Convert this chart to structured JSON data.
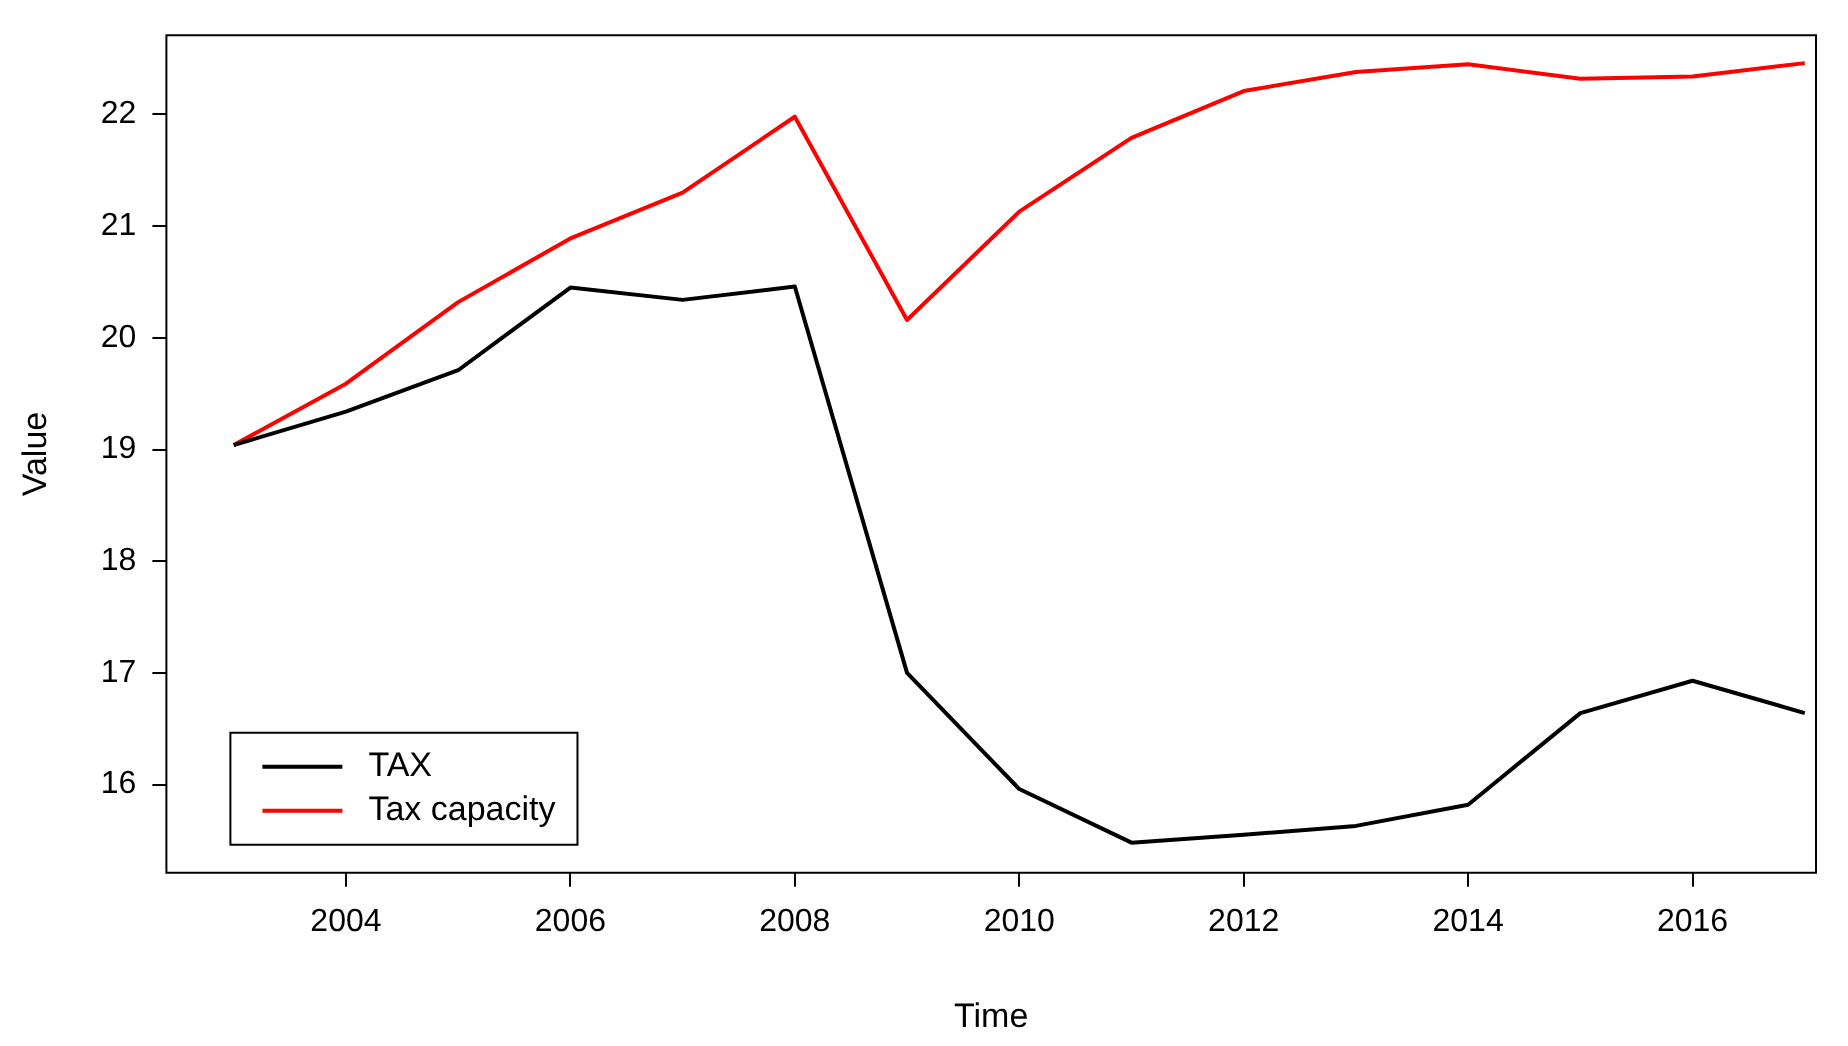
{
  "chart_data": {
    "type": "line",
    "xlabel": "Time",
    "ylabel": "Value",
    "x": [
      2003,
      2004,
      2005,
      2006,
      2007,
      2008,
      2009,
      2010,
      2011,
      2012,
      2013,
      2014,
      2015,
      2016,
      2017
    ],
    "series": [
      {
        "name": "TAX",
        "color": "#000000",
        "values": [
          19.04,
          19.34,
          19.71,
          20.45,
          20.34,
          20.46,
          17.0,
          15.96,
          15.48,
          15.55,
          15.63,
          15.82,
          16.64,
          16.93,
          16.64
        ]
      },
      {
        "name": "Tax capacity",
        "color": "#ff0000",
        "values": [
          19.04,
          19.59,
          20.32,
          20.89,
          21.3,
          21.98,
          20.16,
          21.13,
          21.79,
          22.21,
          22.38,
          22.45,
          22.32,
          22.34,
          22.46
        ]
      }
    ],
    "xlim": [
      2002.4,
      2017.1
    ],
    "ylim": [
      15.21,
      22.71
    ],
    "xticks": [
      2004,
      2006,
      2008,
      2010,
      2012,
      2014,
      2016
    ],
    "yticks": [
      16,
      17,
      18,
      19,
      20,
      21,
      22
    ],
    "grid": false,
    "legend": "bottom left",
    "marker": "none",
    "line_style": "solid"
  }
}
